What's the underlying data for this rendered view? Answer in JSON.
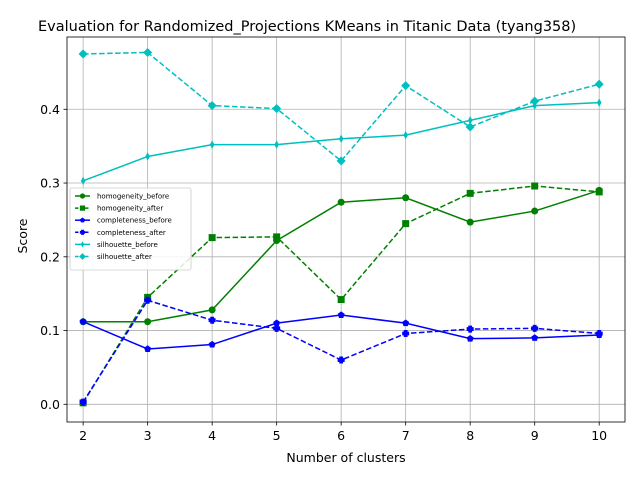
{
  "chart_data": {
    "type": "line",
    "title": "Evaluation for Randomized_Projections KMeans in Titanic Data (tyang358)",
    "xlabel": "Number of clusters",
    "ylabel": "Score",
    "x": [
      2,
      3,
      4,
      5,
      6,
      7,
      8,
      9,
      10
    ],
    "xlim": [
      1.75,
      10.4
    ],
    "ylim": [
      -0.024,
      0.498
    ],
    "yticks": [
      0.0,
      0.1,
      0.2,
      0.3,
      0.4
    ],
    "ytick_labels": [
      "0.0",
      "0.1",
      "0.2",
      "0.3",
      "0.4"
    ],
    "xtick_labels": [
      "2",
      "3",
      "4",
      "5",
      "6",
      "7",
      "8",
      "9",
      "10"
    ],
    "grid": true,
    "legend_position": "center-left",
    "series": [
      {
        "name": "homogeneity_before",
        "color": "#008000",
        "linestyle": "solid",
        "marker": "circle",
        "values": [
          0.112,
          0.112,
          0.128,
          0.222,
          0.274,
          0.28,
          0.247,
          0.262,
          0.29
        ]
      },
      {
        "name": "homogeneity_after",
        "color": "#008000",
        "linestyle": "dashed",
        "marker": "square",
        "values": [
          0.002,
          0.145,
          0.226,
          0.227,
          0.142,
          0.245,
          0.286,
          0.296,
          0.288
        ]
      },
      {
        "name": "completeness_before",
        "color": "#0000ff",
        "linestyle": "solid",
        "marker": "pentagon",
        "values": [
          0.112,
          0.075,
          0.081,
          0.11,
          0.121,
          0.11,
          0.089,
          0.09,
          0.094
        ]
      },
      {
        "name": "completeness_after",
        "color": "#0000ff",
        "linestyle": "dashed",
        "marker": "plus",
        "values": [
          0.003,
          0.141,
          0.114,
          0.103,
          0.06,
          0.096,
          0.102,
          0.103,
          0.096
        ]
      },
      {
        "name": "silhouette_before",
        "color": "#00bfbf",
        "linestyle": "solid",
        "marker": "thin_diamond",
        "values": [
          0.303,
          0.336,
          0.352,
          0.352,
          0.36,
          0.365,
          0.385,
          0.405,
          0.409
        ]
      },
      {
        "name": "silhouette_after",
        "color": "#00bfbf",
        "linestyle": "dashed",
        "marker": "diamond",
        "values": [
          0.475,
          0.477,
          0.405,
          0.401,
          0.33,
          0.432,
          0.376,
          0.411,
          0.434
        ]
      }
    ]
  }
}
